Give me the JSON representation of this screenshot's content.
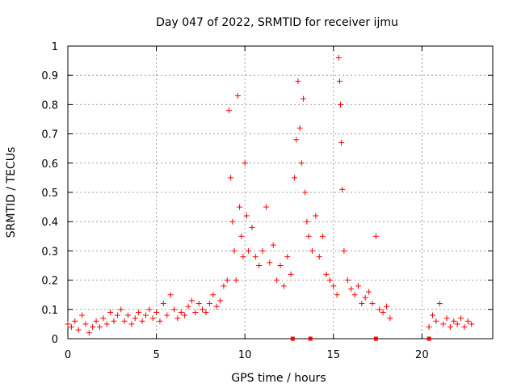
{
  "chart_data": {
    "type": "scatter",
    "title": "Day 047 of 2022, SRMTID for receiver ijmu",
    "xlabel": "GPS time / hours",
    "ylabel": "SRMTID / TECUs",
    "xlim": [
      0,
      24
    ],
    "ylim": [
      0,
      1
    ],
    "x_ticks": [
      0,
      5,
      10,
      15,
      20
    ],
    "x_tick_labels": [
      "0",
      "5",
      "10",
      "15",
      "20"
    ],
    "y_ticks": [
      0,
      0.1,
      0.2,
      0.3,
      0.4,
      0.5,
      0.6,
      0.7,
      0.8,
      0.9,
      1
    ],
    "y_tick_labels": [
      "0",
      "0.1",
      "0.2",
      "0.3",
      "0.4",
      "0.5",
      "0.6",
      "0.7",
      "0.8",
      "0.9",
      "1"
    ],
    "grid": true,
    "marker": "+",
    "series": [
      {
        "name": "SRMTID",
        "color": "#ff0000",
        "points": [
          [
            0.0,
            0.05
          ],
          [
            0.2,
            0.04
          ],
          [
            0.4,
            0.06
          ],
          [
            0.6,
            0.03
          ],
          [
            0.8,
            0.08
          ],
          [
            1.0,
            0.05
          ],
          [
            1.2,
            0.02
          ],
          [
            1.4,
            0.04
          ],
          [
            1.6,
            0.06
          ],
          [
            1.8,
            0.04
          ],
          [
            2.0,
            0.07
          ],
          [
            2.2,
            0.05
          ],
          [
            2.4,
            0.09
          ],
          [
            2.6,
            0.06
          ],
          [
            2.8,
            0.08
          ],
          [
            3.0,
            0.1
          ],
          [
            3.2,
            0.06
          ],
          [
            3.4,
            0.08
          ],
          [
            3.6,
            0.05
          ],
          [
            3.8,
            0.07
          ],
          [
            4.0,
            0.09
          ],
          [
            4.2,
            0.06
          ],
          [
            4.4,
            0.08
          ],
          [
            4.6,
            0.1
          ],
          [
            4.8,
            0.07
          ],
          [
            5.0,
            0.09
          ],
          [
            5.2,
            0.06
          ],
          [
            5.4,
            0.12
          ],
          [
            5.6,
            0.08
          ],
          [
            5.8,
            0.15
          ],
          [
            6.0,
            0.1
          ],
          [
            6.2,
            0.07
          ],
          [
            6.4,
            0.09
          ],
          [
            6.6,
            0.08
          ],
          [
            6.8,
            0.11
          ],
          [
            7.0,
            0.13
          ],
          [
            7.2,
            0.09
          ],
          [
            7.4,
            0.12
          ],
          [
            7.6,
            0.1
          ],
          [
            7.8,
            0.09
          ],
          [
            8.0,
            0.12
          ],
          [
            8.2,
            0.15
          ],
          [
            8.4,
            0.11
          ],
          [
            8.6,
            0.13
          ],
          [
            8.8,
            0.18
          ],
          [
            9.0,
            0.2
          ],
          [
            9.1,
            0.78
          ],
          [
            9.2,
            0.55
          ],
          [
            9.3,
            0.4
          ],
          [
            9.4,
            0.3
          ],
          [
            9.5,
            0.2
          ],
          [
            9.6,
            0.83
          ],
          [
            9.7,
            0.45
          ],
          [
            9.8,
            0.35
          ],
          [
            9.9,
            0.28
          ],
          [
            10.0,
            0.6
          ],
          [
            10.1,
            0.42
          ],
          [
            10.2,
            0.3
          ],
          [
            10.4,
            0.38
          ],
          [
            10.6,
            0.28
          ],
          [
            10.8,
            0.25
          ],
          [
            11.0,
            0.3
          ],
          [
            11.2,
            0.45
          ],
          [
            11.4,
            0.26
          ],
          [
            11.6,
            0.32
          ],
          [
            11.8,
            0.2
          ],
          [
            12.0,
            0.25
          ],
          [
            12.2,
            0.18
          ],
          [
            12.4,
            0.28
          ],
          [
            12.6,
            0.22
          ],
          [
            12.8,
            0.55
          ],
          [
            12.9,
            0.68
          ],
          [
            13.0,
            0.88
          ],
          [
            13.1,
            0.72
          ],
          [
            13.2,
            0.6
          ],
          [
            13.3,
            0.82
          ],
          [
            13.4,
            0.5
          ],
          [
            13.5,
            0.4
          ],
          [
            13.6,
            0.35
          ],
          [
            13.8,
            0.3
          ],
          [
            14.0,
            0.42
          ],
          [
            14.2,
            0.28
          ],
          [
            14.4,
            0.35
          ],
          [
            14.6,
            0.22
          ],
          [
            14.8,
            0.2
          ],
          [
            15.0,
            0.18
          ],
          [
            15.2,
            0.15
          ],
          [
            15.3,
            0.96
          ],
          [
            15.35,
            0.88
          ],
          [
            15.4,
            0.8
          ],
          [
            15.45,
            0.67
          ],
          [
            15.5,
            0.51
          ],
          [
            15.6,
            0.3
          ],
          [
            15.8,
            0.2
          ],
          [
            16.0,
            0.17
          ],
          [
            16.2,
            0.15
          ],
          [
            16.4,
            0.18
          ],
          [
            16.6,
            0.12
          ],
          [
            16.8,
            0.14
          ],
          [
            17.0,
            0.16
          ],
          [
            17.2,
            0.12
          ],
          [
            17.4,
            0.35
          ],
          [
            17.6,
            0.1
          ],
          [
            17.8,
            0.09
          ],
          [
            18.0,
            0.11
          ],
          [
            18.2,
            0.07
          ],
          [
            20.4,
            0.04
          ],
          [
            20.6,
            0.08
          ],
          [
            20.8,
            0.06
          ],
          [
            21.0,
            0.12
          ],
          [
            21.2,
            0.05
          ],
          [
            21.4,
            0.07
          ],
          [
            21.6,
            0.04
          ],
          [
            21.8,
            0.06
          ],
          [
            22.0,
            0.05
          ],
          [
            22.2,
            0.07
          ],
          [
            22.4,
            0.04
          ],
          [
            22.6,
            0.06
          ],
          [
            22.8,
            0.05
          ]
        ]
      }
    ],
    "axis_markers": [
      12.7,
      13.7,
      17.4,
      20.4
    ]
  }
}
